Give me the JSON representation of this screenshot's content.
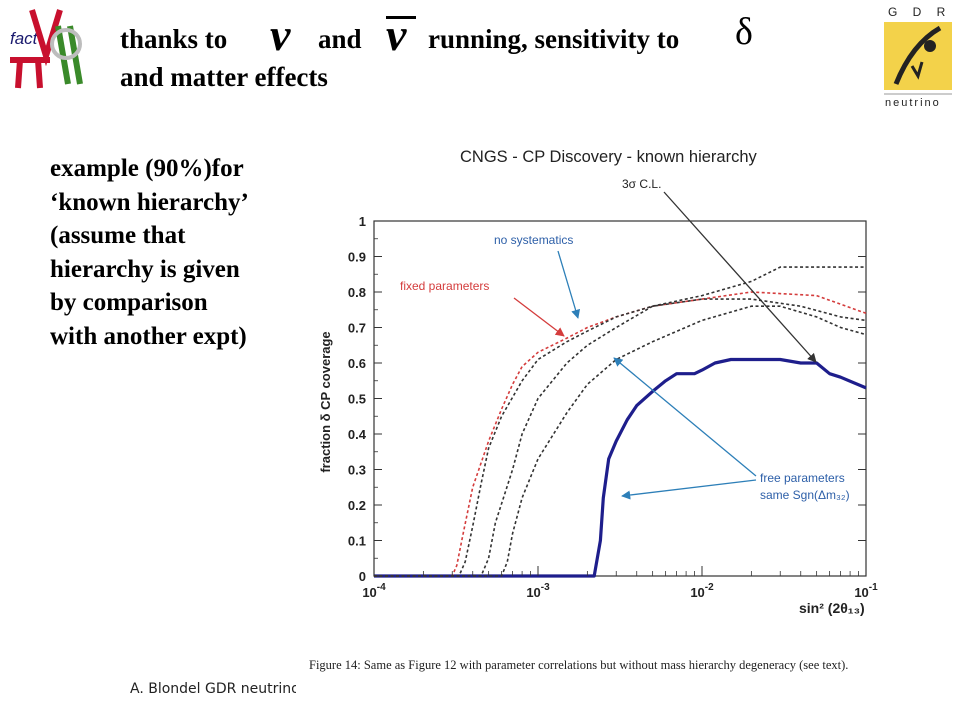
{
  "slide": {
    "heading_line1_parts": [
      "thanks to",
      "and",
      "running, sensitivity to"
    ],
    "heading_line2": "and matter effects",
    "nu_symbol": "ν",
    "delta_symbol": "δ",
    "example_lines": [
      "example (90%)for",
      "‘known hierarchy’",
      "(assume that",
      "hierarchy is given",
      "by comparison",
      "with another expt)"
    ],
    "footer": "A. Blondel GDR neutrino",
    "logo_left_text": "fact",
    "logo_right_letters": "G D R",
    "logo_right_word": "neutrino"
  },
  "chart_data": {
    "type": "line",
    "title": "CNGS - CP Discovery - known hierarchy",
    "xlabel": "sin² (2θ₁₃)",
    "ylabel": "fraction δ CP coverage",
    "x_scale": "log",
    "xlim": [
      0.0001,
      0.1
    ],
    "ylim": [
      0,
      1
    ],
    "x_ticks": [
      {
        "value": 0.0001,
        "base": "10",
        "exp": "-4"
      },
      {
        "value": 0.001,
        "base": "10",
        "exp": "-3"
      },
      {
        "value": 0.01,
        "base": "10",
        "exp": "-2"
      },
      {
        "value": 0.1,
        "base": "10",
        "exp": "-1"
      }
    ],
    "y_ticks": [
      "0",
      "0.1",
      "0.2",
      "0.3",
      "0.4",
      "0.5",
      "0.6",
      "0.7",
      "0.8",
      "0.9",
      "1"
    ],
    "annotations": {
      "cl": "3σ C.L.",
      "no_systematics": "no systematics",
      "fixed_parameters": "fixed parameters",
      "free_parameters_1": "free parameters",
      "free_parameters_2": "same Sgn(Δm₃₂)"
    },
    "caption": "Figure 14:  Same as Figure 12 with parameter correlations but without mass hierarchy degeneracy (see text).",
    "series": [
      {
        "color": "#1e1e8c",
        "style": "solid",
        "points": [
          [
            0.0001,
            0
          ],
          [
            0.0022,
            0
          ],
          [
            0.0024,
            0.1
          ],
          [
            0.0025,
            0.22
          ],
          [
            0.0027,
            0.33
          ],
          [
            0.003,
            0.38
          ],
          [
            0.0035,
            0.44
          ],
          [
            0.004,
            0.48
          ],
          [
            0.005,
            0.52
          ],
          [
            0.006,
            0.55
          ],
          [
            0.007,
            0.57
          ],
          [
            0.009,
            0.57
          ],
          [
            0.01,
            0.58
          ],
          [
            0.012,
            0.6
          ],
          [
            0.015,
            0.61
          ],
          [
            0.02,
            0.61
          ],
          [
            0.03,
            0.61
          ],
          [
            0.04,
            0.6
          ],
          [
            0.05,
            0.6
          ],
          [
            0.06,
            0.57
          ],
          [
            0.07,
            0.56
          ],
          [
            0.1,
            0.53
          ]
        ]
      },
      {
        "color": "#d43c3c",
        "style": "dashed",
        "points": [
          [
            0.0001,
            0
          ],
          [
            0.0003,
            0
          ],
          [
            0.00032,
            0.03
          ],
          [
            0.00035,
            0.12
          ],
          [
            0.0004,
            0.25
          ],
          [
            0.0005,
            0.38
          ],
          [
            0.0006,
            0.47
          ],
          [
            0.0007,
            0.54
          ],
          [
            0.0008,
            0.59
          ],
          [
            0.001,
            0.63
          ],
          [
            0.0015,
            0.67
          ],
          [
            0.002,
            0.7
          ],
          [
            0.003,
            0.73
          ],
          [
            0.005,
            0.76
          ],
          [
            0.01,
            0.78
          ],
          [
            0.02,
            0.8
          ],
          [
            0.05,
            0.79
          ],
          [
            0.1,
            0.74
          ]
        ]
      },
      {
        "color": "#333333",
        "style": "dashed",
        "points": [
          [
            0.0001,
            0
          ],
          [
            0.00033,
            0
          ],
          [
            0.00036,
            0.04
          ],
          [
            0.0004,
            0.14
          ],
          [
            0.00045,
            0.26
          ],
          [
            0.0005,
            0.36
          ],
          [
            0.0006,
            0.45
          ],
          [
            0.0008,
            0.55
          ],
          [
            0.001,
            0.61
          ],
          [
            0.0015,
            0.66
          ],
          [
            0.002,
            0.69
          ],
          [
            0.003,
            0.73
          ],
          [
            0.005,
            0.76
          ],
          [
            0.01,
            0.79
          ],
          [
            0.02,
            0.83
          ],
          [
            0.03,
            0.87
          ],
          [
            0.05,
            0.87
          ],
          [
            0.1,
            0.87
          ]
        ]
      },
      {
        "color": "#333333",
        "style": "dashed",
        "points": [
          [
            0.0001,
            0
          ],
          [
            0.00045,
            0
          ],
          [
            0.0005,
            0.05
          ],
          [
            0.00055,
            0.15
          ],
          [
            0.0007,
            0.3
          ],
          [
            0.0008,
            0.4
          ],
          [
            0.001,
            0.5
          ],
          [
            0.0015,
            0.6
          ],
          [
            0.002,
            0.65
          ],
          [
            0.003,
            0.7
          ],
          [
            0.005,
            0.76
          ],
          [
            0.01,
            0.78
          ],
          [
            0.02,
            0.78
          ],
          [
            0.04,
            0.76
          ],
          [
            0.07,
            0.73
          ],
          [
            0.1,
            0.72
          ]
        ]
      },
      {
        "color": "#333333",
        "style": "dashed",
        "points": [
          [
            0.0001,
            0
          ],
          [
            0.0006,
            0
          ],
          [
            0.00065,
            0.04
          ],
          [
            0.0007,
            0.12
          ],
          [
            0.0008,
            0.22
          ],
          [
            0.001,
            0.33
          ],
          [
            0.0015,
            0.46
          ],
          [
            0.002,
            0.54
          ],
          [
            0.003,
            0.61
          ],
          [
            0.005,
            0.66
          ],
          [
            0.01,
            0.72
          ],
          [
            0.02,
            0.76
          ],
          [
            0.03,
            0.76
          ],
          [
            0.05,
            0.73
          ],
          [
            0.07,
            0.7
          ],
          [
            0.1,
            0.68
          ]
        ]
      }
    ]
  }
}
